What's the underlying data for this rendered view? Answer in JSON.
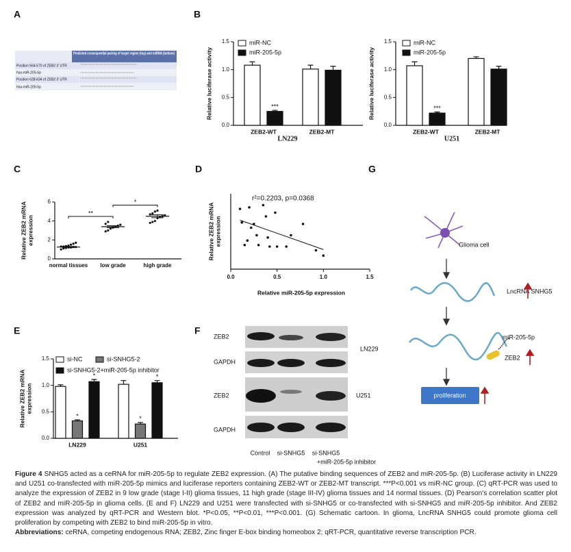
{
  "panels": [
    "A",
    "B",
    "C",
    "D",
    "E",
    "F",
    "G"
  ],
  "table": {
    "header": "Predicted consequential pairing of target region (top) and miRNA (bottom)",
    "rows": [
      "Position 564-570 of ZEB2 3' UTR",
      "hsa-miR-205-5p",
      "Position 628-634 of ZEB2 3' UTR",
      "hsa-miR-205-5p"
    ]
  },
  "chart_data": [
    {
      "type": "bar",
      "ylabel": [
        "Relative luciferase activity"
      ],
      "xlabel": "LN229",
      "categories": [
        "ZEB2-WT",
        "ZEB2-MT"
      ],
      "series": [
        {
          "name": "miR-NC",
          "color": "#ffffff",
          "values": [
            1.08,
            1.01
          ],
          "errors": [
            0.06,
            0.07
          ],
          "significance": [
            null,
            null
          ]
        },
        {
          "name": "miR-205-5p",
          "color": "#111111",
          "values": [
            0.25,
            0.99
          ],
          "errors": [
            0.02,
            0.07
          ],
          "significance": [
            "***",
            null
          ]
        }
      ],
      "ylim": [
        0,
        1.5
      ],
      "yticks": [
        {
          "value": 0,
          "label": "0.0"
        },
        {
          "value": 0.5,
          "label": "0.5"
        },
        {
          "value": 1,
          "label": "1.0"
        },
        {
          "value": 1.5,
          "label": "1.5"
        }
      ]
    },
    {
      "type": "bar",
      "ylabel": [
        "Relative luciferase activity"
      ],
      "xlabel": "U251",
      "categories": [
        "ZEB2-WT",
        "ZEB2-MT"
      ],
      "series": [
        {
          "name": "miR-NC",
          "color": "#ffffff",
          "values": [
            1.07,
            1.2
          ],
          "errors": [
            0.07,
            0.03
          ],
          "significance": [
            null,
            null
          ]
        },
        {
          "name": "miR-205-5p",
          "color": "#111111",
          "values": [
            0.22,
            1.01
          ],
          "errors": [
            0.02,
            0.05
          ],
          "significance": [
            "***",
            null
          ]
        }
      ],
      "ylim": [
        0,
        1.5
      ],
      "yticks": [
        {
          "value": 0,
          "label": "0.0"
        },
        {
          "value": 0.5,
          "label": "0.5"
        },
        {
          "value": 1,
          "label": "1.0"
        },
        {
          "value": 1.5,
          "label": "1.5"
        }
      ]
    },
    {
      "type": "dot",
      "ylabel": [
        "Relative ZEB2 mRNA",
        "expression"
      ],
      "categories": [
        "normal tissues",
        "low grade",
        "high grade"
      ],
      "points": [
        [
          1.0,
          1.1,
          1.15,
          1.2,
          1.2,
          1.25,
          1.25,
          1.3,
          1.3,
          1.35,
          1.4,
          1.5,
          1.6,
          1.7
        ],
        [
          2.9,
          3.0,
          3.2,
          3.3,
          3.4,
          3.5,
          3.6,
          3.7,
          3.9
        ],
        [
          3.8,
          3.9,
          4.0,
          4.3,
          4.4,
          4.5,
          4.6,
          4.7,
          4.8,
          5.0,
          5.1
        ]
      ],
      "means": [
        1.25,
        3.4,
        4.5
      ],
      "errors": [
        0.06,
        0.1,
        0.15
      ],
      "comparisons": [
        "**",
        "*"
      ],
      "ylim": [
        0,
        6
      ],
      "yticks": [
        0,
        2,
        4,
        6
      ]
    },
    {
      "type": "scatter",
      "ylabel": [
        "Relative ZEB2 mRNA",
        "expression"
      ],
      "xlabel": "Relative miR-205-5p expression",
      "annotation": "r²=0.2203, p=0.0368",
      "x": [
        0.1,
        0.12,
        0.15,
        0.18,
        0.2,
        0.22,
        0.25,
        0.28,
        0.3,
        0.35,
        0.38,
        0.4,
        0.42,
        0.48,
        0.5,
        0.6,
        0.65,
        0.78,
        0.92,
        1.0
      ],
      "y": [
        0.8,
        0.62,
        0.32,
        0.38,
        0.82,
        0.55,
        0.6,
        0.45,
        0.32,
        0.85,
        0.7,
        0.42,
        0.3,
        0.75,
        0.3,
        0.3,
        0.45,
        0.6,
        0.25,
        0.18
      ],
      "fit": {
        "x": [
          0.1,
          1.0
        ],
        "y": [
          0.65,
          0.26
        ]
      },
      "xlim": [
        0,
        1.5
      ],
      "xticks": [
        {
          "value": 0,
          "label": "0.0"
        },
        {
          "value": 0.5,
          "label": "0.5"
        },
        {
          "value": 1,
          "label": "1.0"
        },
        {
          "value": 1.5,
          "label": "1.5"
        }
      ],
      "ylim": [
        0,
        1
      ]
    },
    {
      "type": "bar",
      "ylabel": [
        "Relative ZEB2 mRNA",
        "expression"
      ],
      "categories": [
        "LN229",
        "U251"
      ],
      "series": [
        {
          "name": "si-NC",
          "color": "#ffffff",
          "values": [
            0.98,
            1.02
          ],
          "errors": [
            0.03,
            0.07
          ],
          "significance": [
            null,
            null
          ]
        },
        {
          "name": "si-SNHG5-2",
          "color": "#777777",
          "values": [
            0.33,
            0.27
          ],
          "errors": [
            0.02,
            0.03
          ],
          "significance": [
            "*",
            "*"
          ]
        },
        {
          "name": "si-SNHG5-2+miR-205-5p inhibitor",
          "color": "#111111",
          "values": [
            1.07,
            1.05
          ],
          "errors": [
            0.04,
            0.04
          ],
          "significance": [
            "*",
            "*"
          ]
        }
      ],
      "ylim": [
        0,
        1.5
      ],
      "yticks": [
        {
          "value": 0,
          "label": "0.0"
        },
        {
          "value": 0.5,
          "label": "0.5"
        },
        {
          "value": 1,
          "label": "1.0"
        },
        {
          "value": 1.5,
          "label": "1.5"
        }
      ]
    }
  ],
  "blot": {
    "rows": [
      "ZEB2",
      "GAPDH",
      "ZEB2",
      "GAPDH"
    ],
    "cells": [
      "LN229",
      "U251"
    ],
    "lanes": [
      "Control",
      "si-SNHG5",
      [
        "si-SNHG5",
        "+miR-205-5p inhibitor"
      ]
    ]
  },
  "diagram": {
    "nodes": [
      "Glioma cell",
      "LncRNA SNHG5",
      "miR-205-5p",
      "ZEB2",
      "proliferation"
    ]
  },
  "caption": {
    "label": "Figure 4",
    "text": "SNHG5 acted as a ceRNA for miR-205-5p to regulate ZEB2 expression. (A) The putative binding sequences of ZEB2 and miR-205-5p. (B) Luciferase activity in LN229 and U251 co-transfected with miR-205-5p mimics and luciferase reporters containing ZEB2-WT or ZEB2-MT transcript. ***P<0.001 vs miR-NC group. (C) qRT-PCR was used to analyze the expression of ZEB2 in 9 low grade (stage I-II) glioma tissues, 11 high grade (stage III-IV) glioma tissues and 14 normal tissues. (D) Pearson's correlation scatter plot of ZEB2 and miR-205-5p in glioma cells. (E and F) LN229 and U251 were transfected with si-SNHG5 or co-transfected with si-SNHG5 and miR-205-5p inhibitor. And ZEB2 expression was analyzed by qRT-PCR and Western blot. *P<0.05, **P<0.01, ***P<0.001. (G) Schematic cartoon. In glioma, LncRNA SNHG5 could promote glioma cell proliferation by competing with ZEB2 to bind miR-205-5p in vitro.",
    "abbreviations_label": "Abbreviations:",
    "abbreviations": "ceRNA, competing endogenous RNA; ZEB2, Zinc finger E-box binding homeobox 2; qRT-PCR, quantitative reverse transcription PCR."
  }
}
